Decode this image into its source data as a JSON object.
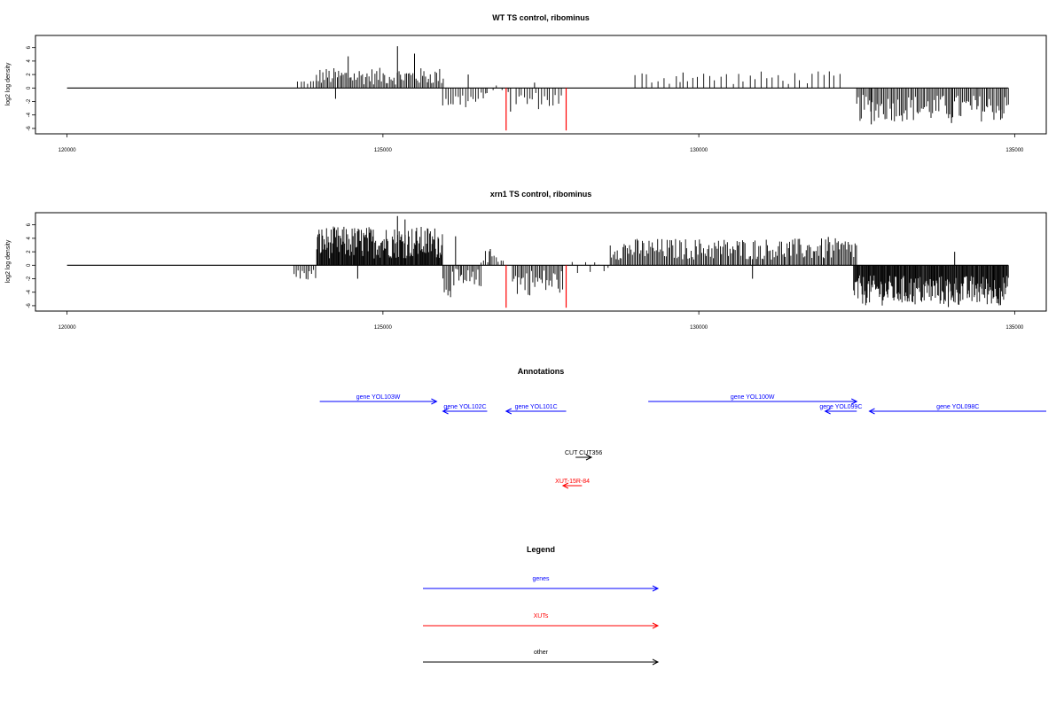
{
  "colors": {
    "gene": "#0000ff",
    "xut": "#ff0000",
    "other": "#000000",
    "frame": "#000000",
    "bar": "#000000",
    "highlight": "#ff0000"
  },
  "chart_data": [
    {
      "type": "bar",
      "title": "WT TS control, ribominus",
      "ylabel": "log2 log density",
      "xlim": [
        119500,
        135500
      ],
      "ylim": [
        -6.8,
        7.8
      ],
      "xticks": [
        120000,
        125000,
        130000,
        135000
      ],
      "yticks": [
        -6,
        -4,
        -2,
        0,
        2,
        4,
        6
      ],
      "baseline": {
        "from": 120000,
        "to": 134900
      },
      "bars": [
        {
          "from": 123650,
          "to": 123950,
          "step": 50,
          "min": 0.5,
          "max": 1.2
        },
        {
          "from": 123950,
          "to": 125950,
          "step": 25,
          "min": 0.5,
          "max": 3.0
        },
        {
          "from": 125950,
          "to": 126650,
          "step": 40,
          "min": -3.2,
          "max": -0.5
        },
        {
          "from": 126650,
          "to": 127000,
          "step": 80,
          "min": -0.8,
          "max": 0.4
        },
        {
          "from": 127100,
          "to": 127850,
          "step": 45,
          "min": -3.2,
          "max": -0.5
        },
        {
          "from": 129000,
          "to": 132300,
          "step": 90,
          "min": 0.5,
          "max": 2.5
        },
        {
          "from": 132500,
          "to": 134900,
          "step": 25,
          "min": -5.0,
          "max": -1.0
        }
      ],
      "spikes": [
        {
          "x": 124250,
          "y": -1.6
        },
        {
          "x": 124450,
          "y": 4.7
        },
        {
          "x": 125230,
          "y": 6.2
        },
        {
          "x": 125500,
          "y": 5.1
        },
        {
          "x": 126350,
          "y": 2.0
        },
        {
          "x": 127020,
          "y": -3.5
        },
        {
          "x": 127400,
          "y": 0.8
        },
        {
          "x": 129750,
          "y": 2.3
        },
        {
          "x": 132730,
          "y": -5.4
        },
        {
          "x": 134000,
          "y": -5.2
        },
        {
          "x": 134800,
          "y": -4.5
        }
      ],
      "highlights": [
        {
          "x": 126950,
          "y": -6.3
        },
        {
          "x": 127900,
          "y": -6.3
        }
      ]
    },
    {
      "type": "bar",
      "title": "xrn1 TS control, ribominus",
      "ylabel": "log2 log density",
      "xlim": [
        119500,
        135500
      ],
      "ylim": [
        -6.8,
        7.8
      ],
      "xticks": [
        120000,
        125000,
        130000,
        135000
      ],
      "yticks": [
        -6,
        -4,
        -2,
        0,
        2,
        4,
        6
      ],
      "baseline": {
        "from": 120000,
        "to": 134900
      },
      "bars": [
        {
          "from": 123600,
          "to": 123950,
          "step": 30,
          "min": -2.3,
          "max": -0.5
        },
        {
          "from": 123950,
          "to": 125950,
          "step": 12,
          "min": 1.0,
          "max": 5.8
        },
        {
          "from": 125950,
          "to": 126550,
          "step": 25,
          "min": -4.8,
          "max": -0.5
        },
        {
          "from": 126550,
          "to": 126900,
          "step": 35,
          "min": 0.3,
          "max": 2.2
        },
        {
          "from": 127050,
          "to": 127850,
          "step": 25,
          "min": -4.5,
          "max": -0.5
        },
        {
          "from": 128000,
          "to": 128600,
          "step": 70,
          "min": -1.2,
          "max": 0.6
        },
        {
          "from": 128600,
          "to": 132500,
          "step": 22,
          "min": 0.8,
          "max": 4.0
        },
        {
          "from": 132450,
          "to": 134900,
          "step": 12,
          "min": -6.0,
          "max": -1.5
        }
      ],
      "spikes": [
        {
          "x": 124600,
          "y": -2.0
        },
        {
          "x": 125230,
          "y": 7.3
        },
        {
          "x": 125350,
          "y": 6.8
        },
        {
          "x": 126150,
          "y": 4.3
        },
        {
          "x": 126700,
          "y": 2.4
        },
        {
          "x": 130850,
          "y": -2.0
        },
        {
          "x": 132050,
          "y": 4.2
        },
        {
          "x": 134050,
          "y": 2.0
        },
        {
          "x": 133950,
          "y": -6.2
        }
      ],
      "highlights": [
        {
          "x": 126950,
          "y": -6.3
        },
        {
          "x": 127900,
          "y": -6.3
        }
      ]
    }
  ],
  "annotations": {
    "title": "Annotations",
    "xlim": [
      119500,
      135500
    ],
    "features": [
      {
        "label": "gene YOL103W",
        "start": 124000,
        "end": 125850,
        "strand": "+",
        "type": "gene",
        "row": 0
      },
      {
        "label": "gene YOL102C",
        "start": 125950,
        "end": 126650,
        "strand": "-",
        "type": "gene",
        "row": 1
      },
      {
        "label": "gene YOL101C",
        "start": 126950,
        "end": 127900,
        "strand": "-",
        "type": "gene",
        "row": 1
      },
      {
        "label": "gene YOL100W",
        "start": 129200,
        "end": 132500,
        "strand": "+",
        "type": "gene",
        "row": 0
      },
      {
        "label": "gene YOL099C",
        "start": 132000,
        "end": 132500,
        "strand": "-",
        "type": "gene",
        "row": 1
      },
      {
        "label": "gene YOL098C",
        "start": 132700,
        "end": 135500,
        "strand": "-",
        "type": "gene",
        "row": 1
      },
      {
        "label": "CUT CUT356",
        "start": 128050,
        "end": 128300,
        "strand": "+",
        "type": "other",
        "row": 2
      },
      {
        "label": "XUT-15R-84",
        "start": 127850,
        "end": 128150,
        "strand": "-",
        "type": "xut",
        "row": 3
      }
    ]
  },
  "legend": {
    "title": "Legend",
    "items": [
      {
        "label": "genes",
        "type": "gene"
      },
      {
        "label": "XUTs",
        "type": "xut"
      },
      {
        "label": "other",
        "type": "other"
      }
    ]
  }
}
